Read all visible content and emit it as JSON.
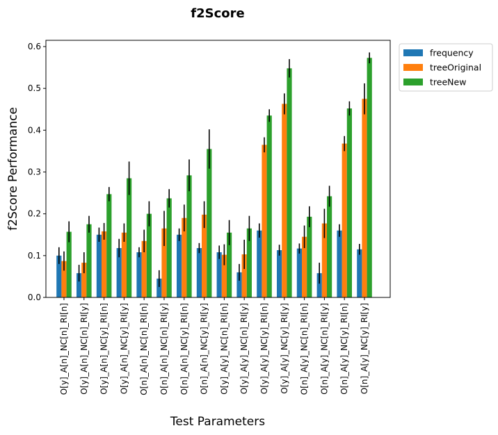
{
  "chart_data": {
    "type": "bar",
    "title": "f2Score",
    "xlabel": "Test Parameters",
    "ylabel": "f2Score Performance",
    "ylim": [
      0,
      0.615
    ],
    "yticks": [
      0.0,
      0.1,
      0.2,
      0.3,
      0.4,
      0.5,
      0.6
    ],
    "ytick_labels": [
      "0.0",
      "0.1",
      "0.2",
      "0.3",
      "0.4",
      "0.5",
      "0.6"
    ],
    "grid": false,
    "legend_position": "outside-top-right",
    "categories": [
      "O[y]_A[n]_NC[n]_RI[n]",
      "O[y]_A[n]_NC[n]_RI[y]",
      "O[y]_A[n]_NC[y]_RI[n]",
      "O[y]_A[n]_NC[y]_RI[y]",
      "O[n]_A[n]_NC[n]_RI[n]",
      "O[n]_A[n]_NC[n]_RI[y]",
      "O[n]_A[n]_NC[y]_RI[n]",
      "O[n]_A[n]_NC[y]_RI[y]",
      "O[y]_A[y]_NC[n]_RI[n]",
      "O[y]_A[y]_NC[n]_RI[y]",
      "O[y]_A[y]_NC[y]_RI[n]",
      "O[y]_A[y]_NC[y]_RI[y]",
      "O[n]_A[y]_NC[n]_RI[n]",
      "O[n]_A[y]_NC[n]_RI[y]",
      "O[n]_A[y]_NC[y]_RI[n]",
      "O[n]_A[y]_NC[y]_RI[y]"
    ],
    "series": [
      {
        "name": "frequency",
        "color": "#1f77b4",
        "values": [
          0.1,
          0.058,
          0.15,
          0.118,
          0.108,
          0.045,
          0.15,
          0.118,
          0.108,
          0.06,
          0.16,
          0.113,
          0.117,
          0.058,
          0.16,
          0.115
        ],
        "errors": [
          0.02,
          0.02,
          0.017,
          0.022,
          0.012,
          0.02,
          0.015,
          0.012,
          0.016,
          0.02,
          0.017,
          0.013,
          0.012,
          0.025,
          0.015,
          0.013
        ]
      },
      {
        "name": "treeOriginal",
        "color": "#ff7f0e",
        "values": [
          0.087,
          0.083,
          0.158,
          0.155,
          0.135,
          0.165,
          0.19,
          0.198,
          0.102,
          0.103,
          0.365,
          0.463,
          0.145,
          0.177,
          0.368,
          0.475
        ],
        "errors": [
          0.023,
          0.025,
          0.02,
          0.022,
          0.027,
          0.042,
          0.032,
          0.032,
          0.025,
          0.035,
          0.018,
          0.025,
          0.027,
          0.035,
          0.018,
          0.037
        ]
      },
      {
        "name": "treeNew",
        "color": "#2ca02c",
        "values": [
          0.157,
          0.175,
          0.247,
          0.285,
          0.2,
          0.237,
          0.292,
          0.355,
          0.155,
          0.165,
          0.435,
          0.548,
          0.193,
          0.242,
          0.452,
          0.573
        ],
        "errors": [
          0.025,
          0.02,
          0.017,
          0.04,
          0.03,
          0.022,
          0.038,
          0.047,
          0.03,
          0.03,
          0.015,
          0.022,
          0.025,
          0.025,
          0.017,
          0.013
        ]
      }
    ]
  }
}
